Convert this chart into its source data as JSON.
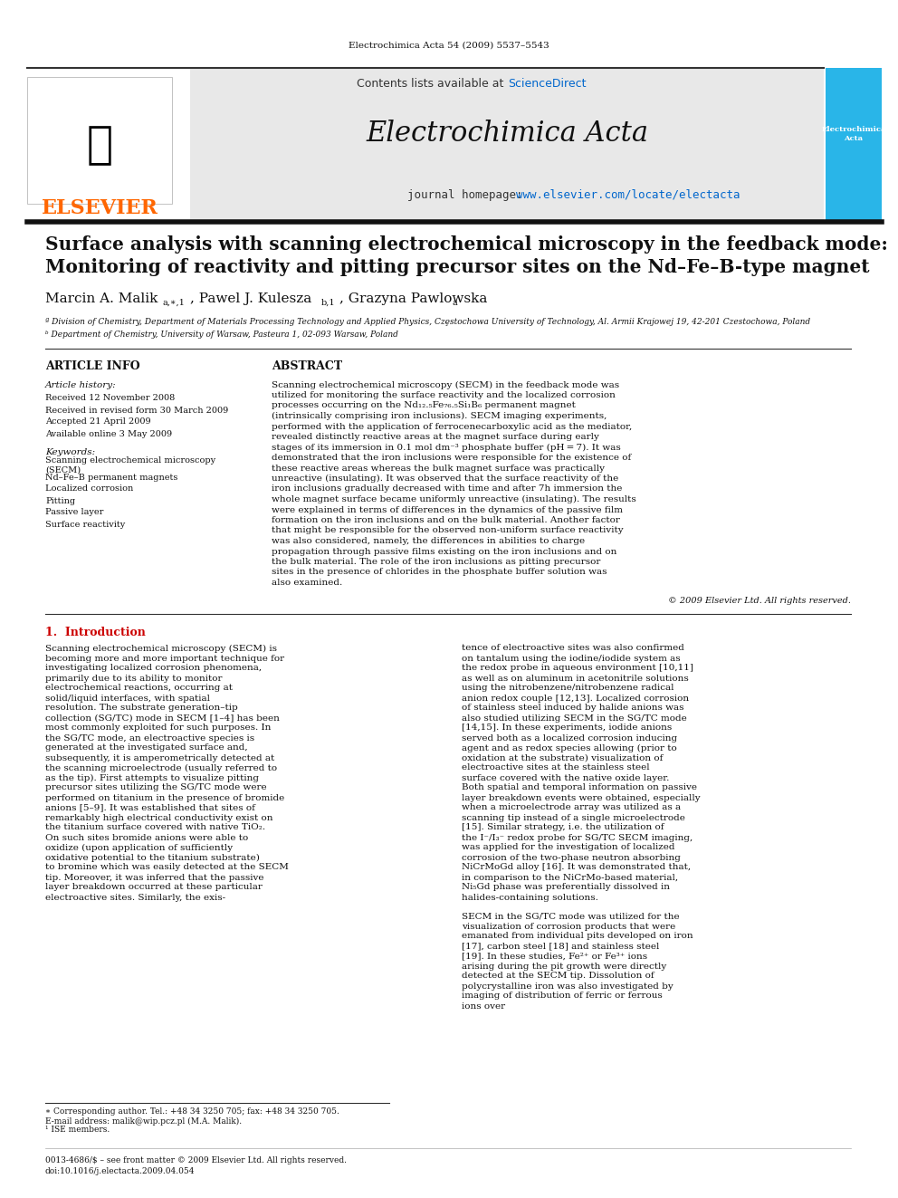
{
  "page_background": "#ffffff",
  "top_journal_ref": "Electrochimica Acta 54 (2009) 5537–5543",
  "header_bg": "#e8e8e8",
  "header_border_top": "#333333",
  "header_border_bottom": "#111111",
  "elsevier_logo_color": "#FF6600",
  "elsevier_text": "ELSEVIER",
  "contents_text": "Contents lists available at ",
  "sciencedirect_text": "ScienceDirect",
  "sciencedirect_color": "#0066cc",
  "journal_title": "Electrochimica Acta",
  "homepage_prefix": "journal homepage: ",
  "homepage_url": "www.elsevier.com/locate/electacta",
  "homepage_color": "#0066cc",
  "cover_bg": "#29b5e8",
  "paper_title_line1": "Surface analysis with scanning electrochemical microscopy in the feedback mode:",
  "paper_title_line2": "Monitoring of reactivity and pitting precursor sites on the Nd–Fe–B-type magnet",
  "authors": "Marcin A. Malik",
  "authors_super1": "a,∗,1",
  "authors2": ", Pawel J. Kulesza",
  "authors_super2": "b,1",
  "authors3": ", Grazyna Pawlowska",
  "authors_super3": "a",
  "affil_a": "ª Division of Chemistry, Department of Materials Processing Technology and Applied Physics, Czȩstochowa University of Technology, Al. Armii Krajowej 19, 42-201 Czestochowa, Poland",
  "affil_b": "ᵇ Department of Chemistry, University of Warsaw, Pasteura 1, 02-093 Warsaw, Poland",
  "article_info_title": "ARTICLE INFO",
  "article_history_title": "Article history:",
  "received": "Received 12 November 2008",
  "received_revised": "Received in revised form 30 March 2009",
  "accepted": "Accepted 21 April 2009",
  "available": "Available online 3 May 2009",
  "keywords_title": "Keywords:",
  "keywords": [
    "Scanning electrochemical microscopy\n(SECM)",
    "Nd–Fe–B permanent magnets",
    "Localized corrosion",
    "Pitting",
    "Passive layer",
    "Surface reactivity"
  ],
  "abstract_title": "ABSTRACT",
  "abstract_text": "Scanning electrochemical microscopy (SECM) in the feedback mode was utilized for monitoring the surface reactivity and the localized corrosion processes occurring on the Nd₁₂.₅Fe₇₆.₅Si₁B₆ permanent magnet (intrinsically comprising iron inclusions). SECM imaging experiments, performed with the application of ferrocenecarboxylic acid as the mediator, revealed distinctly reactive areas at the magnet surface during early stages of its immersion in 0.1 mol dm⁻³ phosphate buffer (pH = 7). It was demonstrated that the iron inclusions were responsible for the existence of these reactive areas whereas the bulk magnet surface was practically unreactive (insulating). It was observed that the surface reactivity of the iron inclusions gradually decreased with time and after 7h immersion the whole magnet surface became uniformly unreactive (insulating). The results were explained in terms of differences in the dynamics of the passive film formation on the iron inclusions and on the bulk material. Another factor that might be responsible for the observed non-uniform surface reactivity was also considered, namely, the differences in abilities to charge propagation through passive films existing on the iron inclusions and on the bulk material. The role of the iron inclusions as pitting precursor sites in the presence of chlorides in the phosphate buffer solution was also examined.",
  "copyright_text": "© 2009 Elsevier Ltd. All rights reserved.",
  "section1_title": "1.  Introduction",
  "intro_text": "Scanning electrochemical microscopy (SECM) is becoming more and more important technique for investigating localized corrosion phenomena, primarily due to its ability to monitor electrochemical reactions, occurring at solid/liquid interfaces, with spatial resolution. The substrate generation–tip collection (SG/TC) mode in SECM [1–4] has been most commonly exploited for such purposes. In the SG/TC mode, an electroactive species is generated at the investigated surface and, subsequently, it is amperometrically detected at the scanning microelectrode (usually referred to as the tip). First attempts to visualize pitting precursor sites utilizing the SG/TC mode were performed on titanium in the presence of bromide anions [5–9]. It was established that sites of remarkably high electrical conductivity exist on the titanium surface covered with native TiO₂. On such sites bromide anions were able to oxidize (upon application of sufficiently oxidative potential to the titanium substrate) to bromine which was easily detected at the SECM tip. Moreover, it was inferred that the passive layer breakdown occurred at these particular electroactive sites. Similarly, the exis-",
  "right_col_text": "tence of electroactive sites was also confirmed on tantalum using the iodine/iodide system as the redox probe in aqueous environment [10,11] as well as on aluminum in acetonitrile solutions using the nitrobenzene/nitrobenzene radical anion redox couple [12,13]. Localized corrosion of stainless steel induced by halide anions was also studied utilizing SECM in the SG/TC mode [14,15]. In these experiments, iodide anions served both as a localized corrosion inducing agent and as redox species allowing (prior to oxidation at the substrate) visualization of electroactive sites at the stainless steel surface covered with the native oxide layer. Both spatial and temporal information on passive layer breakdown events were obtained, especially when a microelectrode array was utilized as a scanning tip instead of a single microelectrode [15]. Similar strategy, i.e. the utilization of the I⁻/I₃⁻ redox probe for SG/TC SECM imaging, was applied for the investigation of localized corrosion of the two-phase neutron absorbing NiCrMoGd alloy [16]. It was demonstrated that, in comparison to the NiCrMo-based material, Ni₅Gd phase was preferentially dissolved in halides-containing solutions.",
  "right_col_text2": "SECM in the SG/TC mode was utilized for the visualization of corrosion products that were emanated from individual pits developed on iron [17], carbon steel [18] and stainless steel [19]. In these studies, Fe²⁺ or Fe³⁺ ions arising during the pit growth were directly detected at the SECM tip. Dissolution of polycrystalline iron was also investigated by imaging of distribution of ferric or ferrous ions over",
  "footnote_star": "∗ Corresponding author. Tel.: +48 34 3250 705; fax: +48 34 3250 705.",
  "footnote_email": "E-mail address: malik@wip.pcz.pl (M.A. Malik).",
  "footnote_1": "¹ ISE members.",
  "footer_issn": "0013-4686/$ – see front matter © 2009 Elsevier Ltd. All rights reserved.",
  "footer_doi": "doi:10.1016/j.electacta.2009.04.054"
}
